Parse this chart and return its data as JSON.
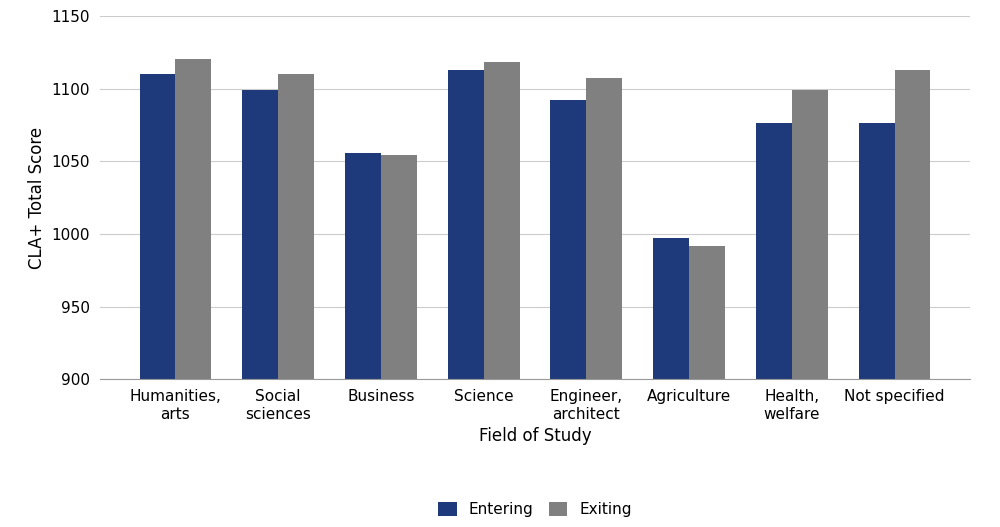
{
  "categories": [
    "Humanities,\narts",
    "Social\nsciences",
    "Business",
    "Science",
    "Engineer,\narchitect",
    "Agriculture",
    "Health,\nwelfare",
    "Not specified"
  ],
  "entering": [
    1110,
    1099,
    1056,
    1113,
    1092,
    997,
    1076,
    1076
  ],
  "exiting": [
    1120,
    1110,
    1054,
    1118,
    1107,
    992,
    1099,
    1113
  ],
  "entering_color": "#1F3A7A",
  "exiting_color": "#808080",
  "ylabel": "CLA+ Total Score",
  "xlabel": "Field of Study",
  "ylim": [
    900,
    1150
  ],
  "yticks": [
    900,
    950,
    1000,
    1050,
    1100,
    1150
  ],
  "legend_labels": [
    "Entering",
    "Exiting"
  ],
  "axis_fontsize": 12,
  "tick_fontsize": 11,
  "legend_fontsize": 11,
  "bar_width": 0.35,
  "background_color": "#ffffff",
  "grid_color": "#cccccc"
}
